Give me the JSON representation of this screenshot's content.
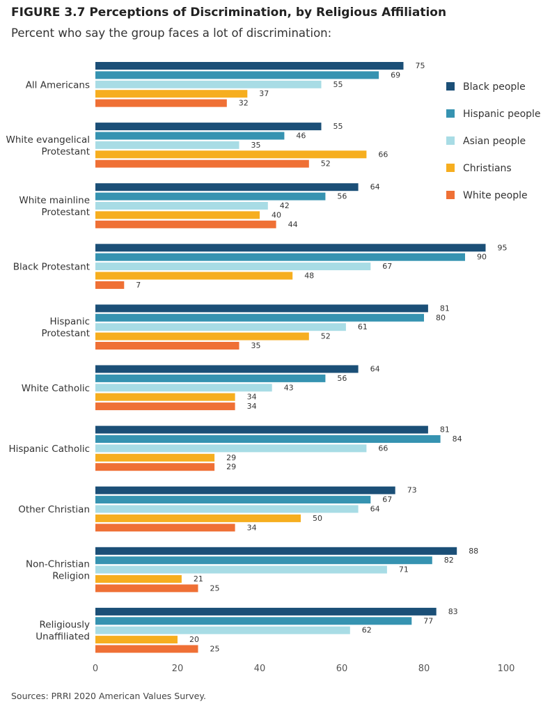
{
  "header": {
    "title": "FIGURE 3.7  Perceptions of Discrimination, by Religious Affiliation",
    "subtitle": "Percent who say the group faces a lot of discrimination:"
  },
  "footer": {
    "source": "Sources: PRRI 2020 American Values Survey."
  },
  "chart_data": {
    "type": "bar",
    "orientation": "horizontal",
    "title": "FIGURE 3.7  Perceptions of Discrimination, by Religious Affiliation",
    "subtitle": "Percent who say the group faces a lot of discrimination:",
    "xlim": [
      0,
      100
    ],
    "xticks": [
      0,
      20,
      40,
      60,
      80,
      100
    ],
    "grid": false,
    "legend_position": "right",
    "categories": [
      [
        "All Americans"
      ],
      [
        "White evangelical",
        "Protestant"
      ],
      [
        "White mainline",
        "Protestant"
      ],
      [
        "Black Protestant"
      ],
      [
        "Hispanic",
        "Protestant"
      ],
      [
        "White Catholic"
      ],
      [
        "Hispanic Catholic"
      ],
      [
        "Other Christian"
      ],
      [
        "Non-Christian",
        "Religion"
      ],
      [
        "Religiously",
        "Unaffiliated"
      ]
    ],
    "series": [
      {
        "name": "Black people",
        "color": "#1b4f77",
        "values": [
          75,
          55,
          64,
          95,
          81,
          64,
          81,
          73,
          88,
          83
        ]
      },
      {
        "name": "Hispanic people",
        "color": "#3693b1",
        "values": [
          69,
          46,
          56,
          90,
          80,
          56,
          84,
          67,
          82,
          77
        ]
      },
      {
        "name": "Asian people",
        "color": "#a8dce5",
        "values": [
          55,
          35,
          42,
          67,
          61,
          43,
          66,
          64,
          71,
          62
        ]
      },
      {
        "name": "Christians",
        "color": "#f6ae1f",
        "values": [
          37,
          66,
          40,
          48,
          52,
          34,
          29,
          50,
          21,
          20
        ]
      },
      {
        "name": "White people",
        "color": "#ef7035",
        "values": [
          32,
          52,
          44,
          7,
          35,
          34,
          29,
          34,
          25,
          25
        ]
      }
    ]
  }
}
